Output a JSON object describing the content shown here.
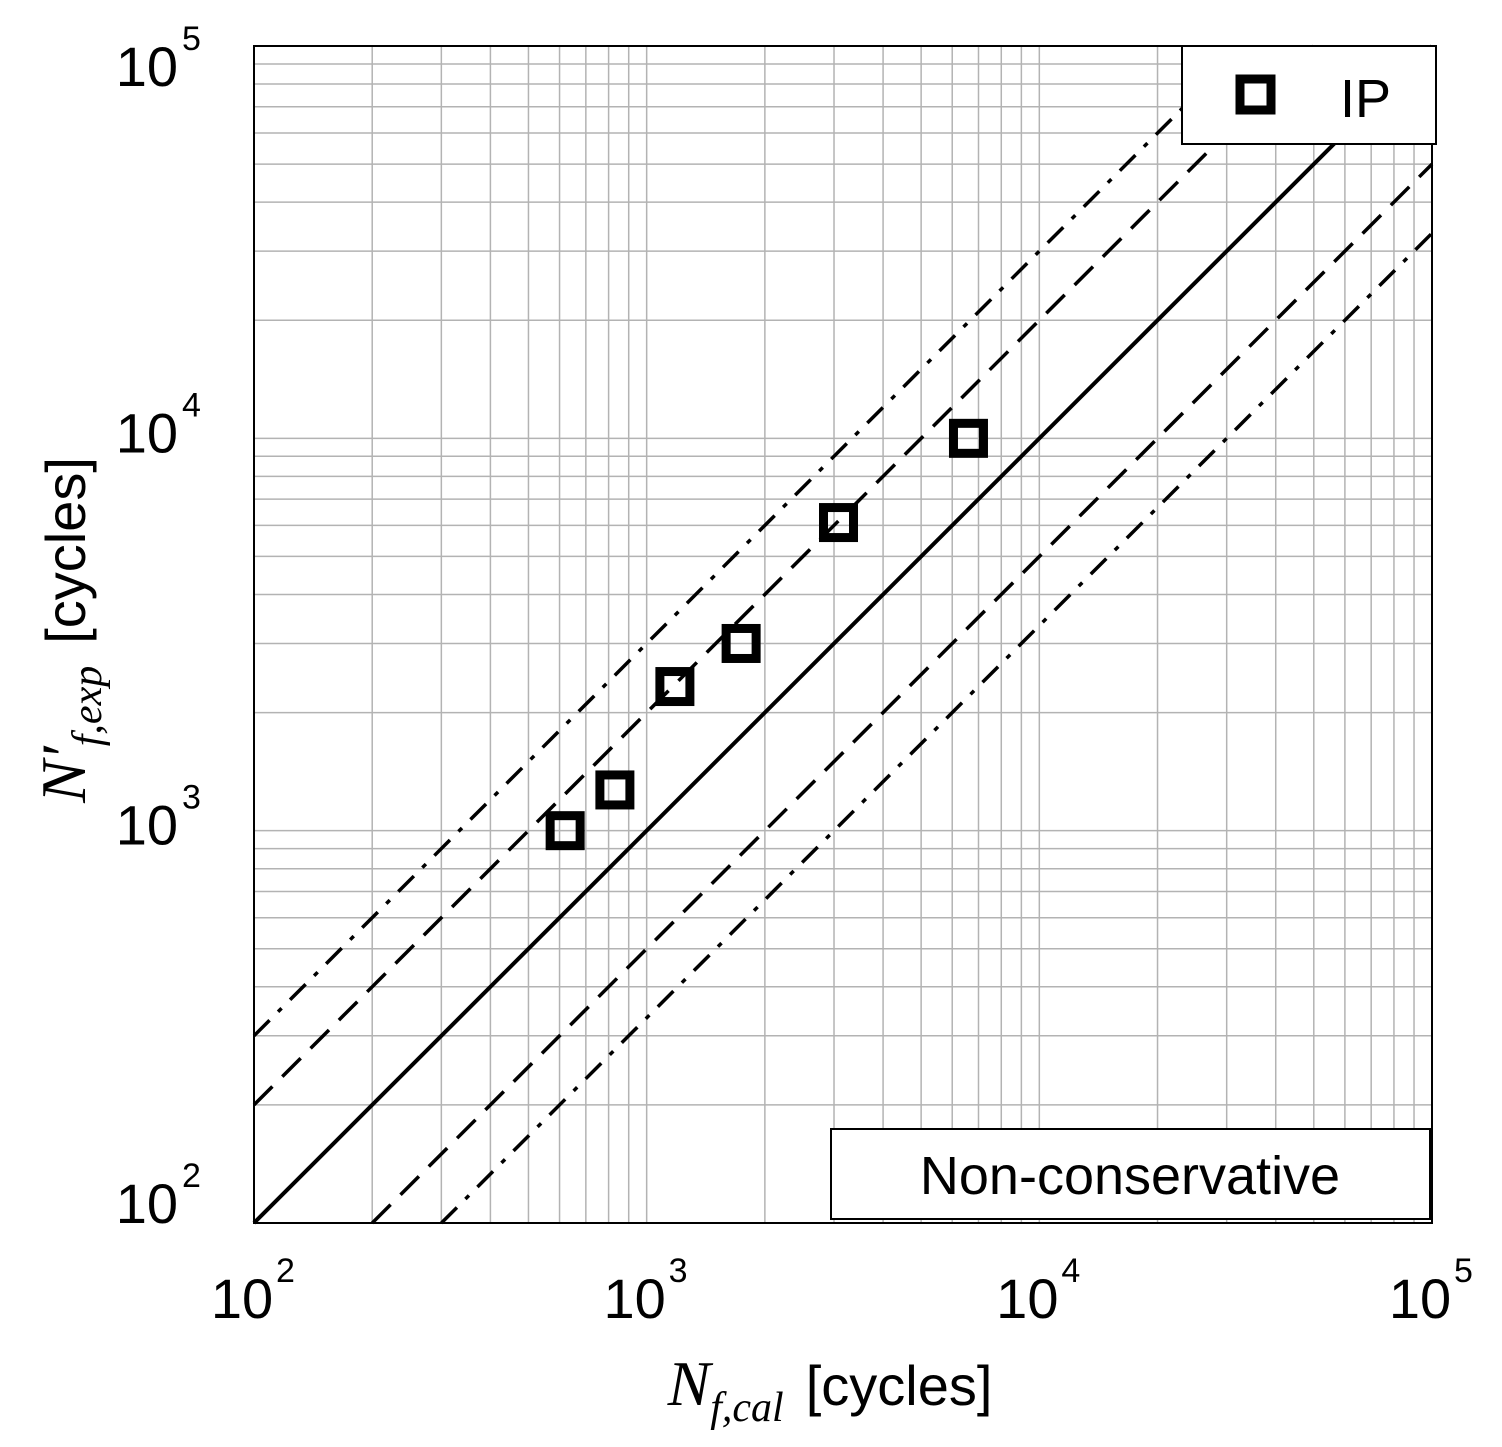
{
  "chart_data": {
    "type": "scatter",
    "scale": "log-log",
    "xlim": [
      100,
      100000
    ],
    "ylim": [
      100,
      100000
    ],
    "grid": true,
    "x_ticks": [
      {
        "base": "10",
        "exp": "2"
      },
      {
        "base": "10",
        "exp": "3"
      },
      {
        "base": "10",
        "exp": "4"
      },
      {
        "base": "10",
        "exp": "5"
      }
    ],
    "y_ticks": [
      {
        "base": "10",
        "exp": "2"
      },
      {
        "base": "10",
        "exp": "3"
      },
      {
        "base": "10",
        "exp": "4"
      },
      {
        "base": "10",
        "exp": "5"
      }
    ],
    "xlabel": {
      "symbol": "N",
      "subscript": "f,cal",
      "unit": "[cycles]"
    },
    "ylabel": {
      "symbol": "N′",
      "subscript": "f,exp",
      "unit": "[cycles]"
    },
    "series": [
      {
        "name": "IP",
        "marker": "square",
        "points": [
          {
            "x": 620,
            "y": 1000
          },
          {
            "x": 830,
            "y": 1270
          },
          {
            "x": 1180,
            "y": 2330
          },
          {
            "x": 1740,
            "y": 3000
          },
          {
            "x": 3080,
            "y": 6100
          },
          {
            "x": 6600,
            "y": 10000
          }
        ]
      }
    ],
    "reference_lines": [
      {
        "name": "1:1",
        "style": "solid",
        "factor": 1
      },
      {
        "name": "factor-2-upper",
        "style": "dashed",
        "factor": 2
      },
      {
        "name": "factor-2-lower",
        "style": "dashed",
        "factor": 0.5
      },
      {
        "name": "factor-3-upper",
        "style": "dash-dot",
        "factor": 3
      },
      {
        "name": "factor-3-lower",
        "style": "dash-dot",
        "factor": 0.3333
      }
    ],
    "legend": {
      "entries": [
        "IP"
      ],
      "position": "top-right"
    },
    "annotation": "Non-conservative",
    "annotation_position": "bottom-right"
  }
}
